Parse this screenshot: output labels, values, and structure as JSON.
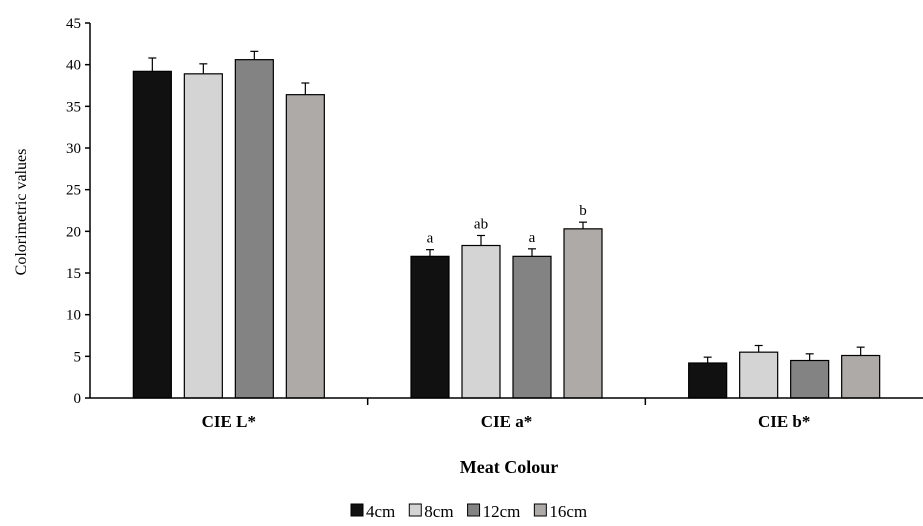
{
  "chart_data": {
    "type": "bar",
    "categories": [
      "CIE L*",
      "CIE a*",
      "CIE b*"
    ],
    "series": [
      {
        "name": "4cm",
        "color": "#111111",
        "values": [
          39.2,
          17.0,
          4.2
        ],
        "errors": [
          1.6,
          0.8,
          0.7
        ],
        "labels": [
          "",
          "a",
          ""
        ]
      },
      {
        "name": "8cm",
        "color": "#d4d4d4",
        "values": [
          38.9,
          18.3,
          5.5
        ],
        "errors": [
          1.2,
          1.2,
          0.8
        ],
        "labels": [
          "",
          "ab",
          ""
        ]
      },
      {
        "name": "12cm",
        "color": "#838383",
        "values": [
          40.6,
          17.0,
          4.5
        ],
        "errors": [
          1.0,
          0.9,
          0.8
        ],
        "labels": [
          "",
          "a",
          ""
        ]
      },
      {
        "name": "16cm",
        "color": "#aeaaa8",
        "values": [
          36.4,
          20.3,
          5.1
        ],
        "errors": [
          1.4,
          0.8,
          1.0
        ],
        "labels": [
          "",
          "b",
          ""
        ]
      }
    ],
    "xlabel": "Meat Colour",
    "ylabel": "Colorimetric values",
    "ylim": [
      0,
      45
    ],
    "yticks": [
      0,
      5,
      10,
      15,
      20,
      25,
      30,
      35,
      40,
      45
    ],
    "grid": false,
    "legend_position": "bottom"
  }
}
